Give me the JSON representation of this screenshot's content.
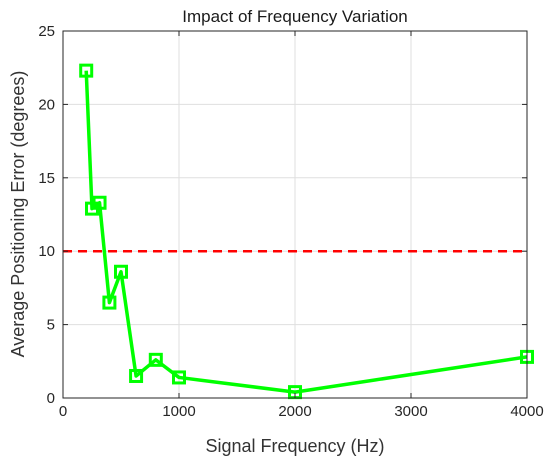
{
  "chart_data": {
    "type": "line",
    "title": "Impact of Frequency Variation",
    "xlabel": "Signal Frequency (Hz)",
    "ylabel": "Average Positioning Error (degrees)",
    "xlim": [
      0,
      4000
    ],
    "ylim": [
      0,
      25
    ],
    "xticks": [
      0,
      1000,
      2000,
      3000,
      4000
    ],
    "yticks": [
      0,
      5,
      10,
      15,
      20,
      25
    ],
    "grid": true,
    "series": [
      {
        "color": "#00ff00",
        "marker": "square",
        "x": [
          200,
          250,
          315,
          400,
          500,
          630,
          800,
          1000,
          2000,
          4000
        ],
        "y": [
          22.3,
          12.9,
          13.3,
          6.5,
          8.6,
          1.5,
          2.6,
          1.4,
          0.4,
          2.8
        ]
      }
    ],
    "reference_line": {
      "y": 10,
      "color": "#ff0000",
      "style": "dashed"
    }
  }
}
